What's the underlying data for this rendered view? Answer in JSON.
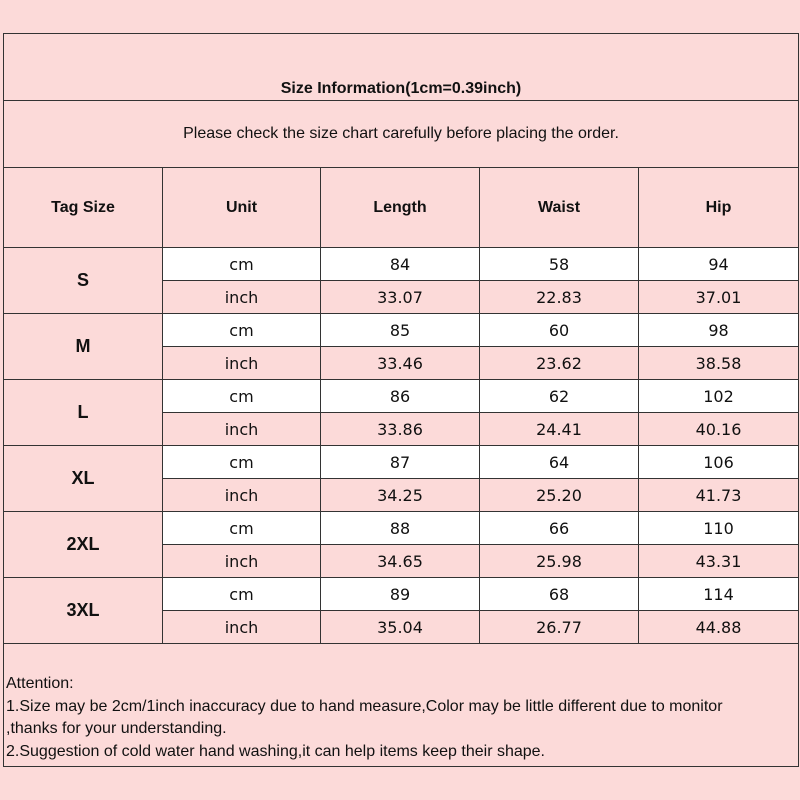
{
  "title": "Size Information(1cm=0.39inch)",
  "subtitle": "Please check the size chart carefully before placing the order.",
  "headers": [
    "Tag Size",
    "Unit",
    "Length",
    "Waist",
    "Hip"
  ],
  "sizes": [
    {
      "tag": "S",
      "rows": [
        {
          "unit": "cm",
          "length": "84",
          "waist": "58",
          "hip": "94"
        },
        {
          "unit": "inch",
          "length": "33.07",
          "waist": "22.83",
          "hip": "37.01"
        }
      ]
    },
    {
      "tag": "M",
      "rows": [
        {
          "unit": "cm",
          "length": "85",
          "waist": "60",
          "hip": "98"
        },
        {
          "unit": "inch",
          "length": "33.46",
          "waist": "23.62",
          "hip": "38.58"
        }
      ]
    },
    {
      "tag": "L",
      "rows": [
        {
          "unit": "cm",
          "length": "86",
          "waist": "62",
          "hip": "102"
        },
        {
          "unit": "inch",
          "length": "33.86",
          "waist": "24.41",
          "hip": "40.16"
        }
      ]
    },
    {
      "tag": "XL",
      "rows": [
        {
          "unit": "cm",
          "length": "87",
          "waist": "64",
          "hip": "106"
        },
        {
          "unit": "inch",
          "length": "34.25",
          "waist": "25.20",
          "hip": "41.73"
        }
      ]
    },
    {
      "tag": "2XL",
      "rows": [
        {
          "unit": "cm",
          "length": "88",
          "waist": "66",
          "hip": "110"
        },
        {
          "unit": "inch",
          "length": "34.65",
          "waist": "25.98",
          "hip": "43.31"
        }
      ]
    },
    {
      "tag": "3XL",
      "rows": [
        {
          "unit": "cm",
          "length": "89",
          "waist": "68",
          "hip": "114"
        },
        {
          "unit": "inch",
          "length": "35.04",
          "waist": "26.77",
          "hip": "44.88"
        }
      ]
    }
  ],
  "attention": {
    "heading": "Attention:",
    "lines": [
      "1.Size may be 2cm/1inch inaccuracy due to hand measure,Color may be little different due to monitor",
      ",thanks for your understanding.",
      "2.Suggestion of cold water hand washing,it can help items keep their shape."
    ]
  },
  "colors": {
    "background": "#fcdad9",
    "cm_row": "#ffffff",
    "border": "#333333"
  }
}
